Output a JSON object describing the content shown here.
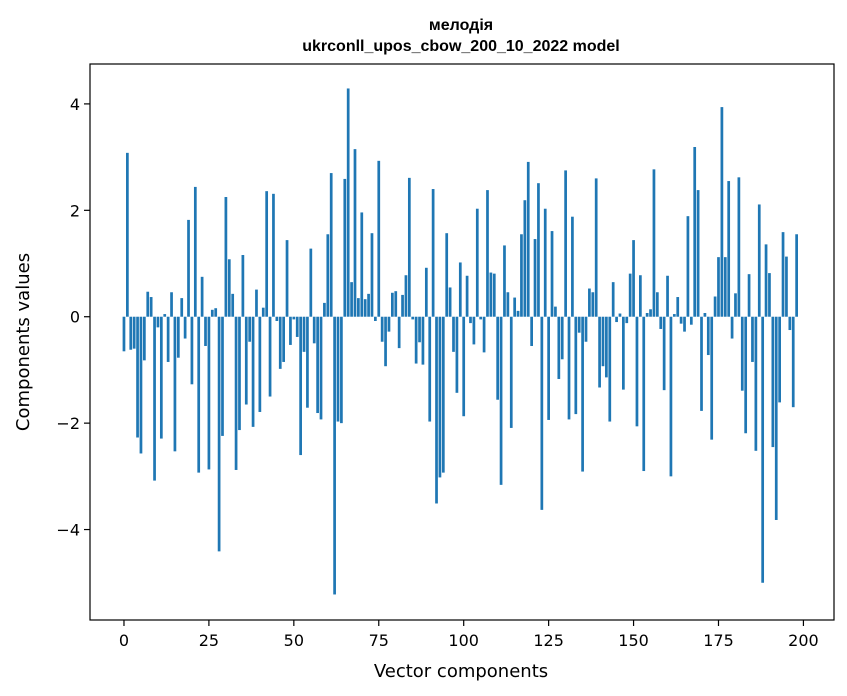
{
  "chart_data": {
    "type": "bar",
    "title": "мелодія",
    "subtitle": "ukrconll_upos_cbow_200_10_2022 model",
    "xlabel": "Vector components",
    "ylabel": "Components values",
    "xlim": [
      -10,
      209
    ],
    "ylim": [
      -5.7,
      4.75
    ],
    "xticks": [
      0,
      25,
      50,
      75,
      100,
      125,
      150,
      175,
      200
    ],
    "yticks": [
      -4,
      -2,
      0,
      2,
      4
    ],
    "grid": false,
    "bar_color": "#1f77b4",
    "values": [
      -0.65,
      3.08,
      -0.62,
      -0.6,
      -2.27,
      -2.57,
      -0.82,
      0.47,
      0.37,
      -3.08,
      -0.2,
      -2.29,
      0.05,
      -0.85,
      0.46,
      -2.53,
      -0.77,
      0.35,
      -0.41,
      1.82,
      -1.27,
      2.44,
      -2.93,
      0.75,
      -0.55,
      -2.87,
      0.13,
      0.16,
      -4.41,
      -2.24,
      2.25,
      1.08,
      0.43,
      -2.88,
      -2.13,
      1.16,
      -1.65,
      -0.47,
      -2.07,
      0.51,
      -1.79,
      0.17,
      2.36,
      -1.5,
      2.31,
      -0.08,
      -0.98,
      -0.85,
      1.44,
      -0.53,
      -0.05,
      -0.38,
      -2.6,
      -0.66,
      -1.71,
      1.28,
      -0.5,
      -1.81,
      -1.93,
      0.26,
      1.55,
      2.7,
      -5.22,
      -1.97,
      -2.0,
      2.59,
      4.29,
      0.65,
      3.15,
      0.35,
      1.96,
      0.33,
      0.43,
      1.57,
      -0.08,
      2.93,
      -0.47,
      -0.93,
      -0.28,
      0.45,
      0.48,
      -0.59,
      0.41,
      0.78,
      2.61,
      -0.05,
      -0.88,
      -0.48,
      -0.9,
      0.92,
      -1.97,
      2.4,
      -3.51,
      -3.02,
      -2.93,
      1.57,
      0.55,
      -0.66,
      -1.43,
      1.02,
      -1.87,
      0.77,
      -0.12,
      -0.52,
      2.03,
      -0.05,
      -0.67,
      2.38,
      0.83,
      0.81,
      -1.56,
      -3.16,
      1.34,
      0.46,
      -2.09,
      0.36,
      0.11,
      1.55,
      2.19,
      2.91,
      -0.55,
      1.46,
      2.51,
      -3.63,
      2.03,
      -1.94,
      1.61,
      0.19,
      -1.17,
      -0.8,
      2.75,
      -1.93,
      1.88,
      -1.83,
      -0.3,
      -2.91,
      -0.47,
      0.53,
      0.46,
      2.6,
      -1.33,
      -0.93,
      -1.14,
      -1.97,
      0.65,
      -0.1,
      0.06,
      -1.37,
      -0.12,
      0.81,
      1.44,
      -2.06,
      0.78,
      -2.9,
      0.07,
      0.14,
      2.77,
      0.46,
      -0.23,
      -1.38,
      0.77,
      -3.0,
      0.05,
      0.37,
      -0.13,
      -0.28,
      1.89,
      -0.15,
      3.19,
      2.38,
      -1.77,
      0.07,
      -0.72,
      -2.31,
      0.38,
      1.12,
      3.94,
      1.12,
      2.55,
      -0.41,
      0.44,
      2.62,
      -1.39,
      -2.19,
      0.8,
      -0.85,
      -2.52,
      2.11,
      -5.0,
      1.36,
      0.82,
      -2.45,
      -3.82,
      -1.61,
      1.59,
      1.13,
      -0.25,
      -1.7,
      1.55
    ]
  }
}
